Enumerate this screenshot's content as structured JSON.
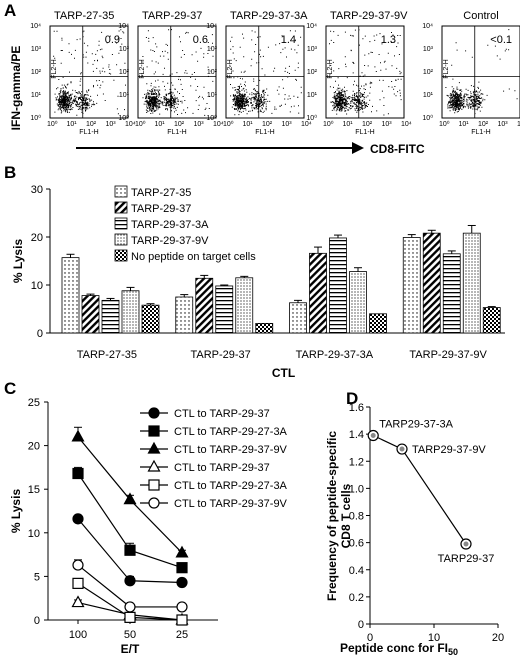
{
  "panels": {
    "A": {
      "letter": "A",
      "y_title": "IFN-gamma/PE",
      "x_title": "CD8-FITC",
      "plots": [
        {
          "title": "TARP-27-35",
          "value": "0.9"
        },
        {
          "title": "TARP-29-37",
          "value": "0.6"
        },
        {
          "title": "TARP-29-37-3A",
          "value": "1.4"
        },
        {
          "title": "TARP-29-37-9V",
          "value": "1.3"
        },
        {
          "title": "Control",
          "value": "<0.1"
        }
      ],
      "axis_x_label": "FL1-H",
      "axis_y_label": "FL2-H",
      "tick_text": [
        "10⁰",
        "10¹",
        "10²",
        "10³",
        "10⁴"
      ]
    },
    "B": {
      "letter": "B"
    },
    "C": {
      "letter": "C"
    },
    "D": {
      "letter": "D"
    }
  },
  "chart_data": [
    {
      "panel": "B",
      "type": "bar",
      "xlabel": "CTL",
      "ylabel": "% Lysis",
      "ylim": [
        0,
        30
      ],
      "yticks": [
        0,
        10,
        20,
        30
      ],
      "categories": [
        "TARP-27-35",
        "TARP-29-37",
        "TARP-29-37-3A",
        "TARP-29-37-9V"
      ],
      "series": [
        {
          "name": "TARP-27-35",
          "pattern": "dots",
          "values": [
            15.7,
            7.5,
            6.3,
            19.9
          ],
          "errors": [
            0.7,
            0.5,
            0.5,
            0.6
          ]
        },
        {
          "name": "TARP-29-37",
          "pattern": "diag",
          "values": [
            7.8,
            11.4,
            16.6,
            20.8
          ],
          "errors": [
            0.3,
            0.6,
            1.3,
            0.6
          ]
        },
        {
          "name": "TARP-29-37-3A",
          "pattern": "hlines",
          "values": [
            6.8,
            9.8,
            19.8,
            16.5
          ],
          "errors": [
            0.4,
            0.2,
            0.6,
            0.6
          ]
        },
        {
          "name": "TARP-29-37-9V",
          "pattern": "dotsdense",
          "values": [
            8.8,
            11.5,
            12.8,
            20.8
          ],
          "errors": [
            0.7,
            0.3,
            0.8,
            1.6
          ]
        },
        {
          "name": "No peptide on target cells",
          "pattern": "checker",
          "values": [
            5.8,
            2.0,
            4.0,
            5.3
          ],
          "errors": [
            0.3,
            0.0,
            0.0,
            0.2
          ]
        }
      ],
      "legend_placement": "top-center"
    },
    {
      "panel": "C",
      "type": "line",
      "xlabel": "E/T",
      "ylabel": "% Lysis",
      "x": [
        "100",
        "50",
        "25"
      ],
      "ylim": [
        0,
        25
      ],
      "yticks": [
        0,
        5,
        10,
        15,
        20,
        25
      ],
      "series": [
        {
          "name": "CTL to TARP-29-37",
          "marker": "circle",
          "filled": true,
          "values": [
            11.6,
            4.5,
            4.3
          ],
          "errors": [
            0.3,
            0.5,
            0.2
          ]
        },
        {
          "name": "CTL to TARP-29-27-3A",
          "marker": "square",
          "filled": true,
          "values": [
            16.8,
            8.0,
            6.0
          ],
          "errors": [
            0.7,
            0.8,
            0.3
          ]
        },
        {
          "name": "CTL to TARP-29-37-9V",
          "marker": "triangle",
          "filled": true,
          "values": [
            21.0,
            13.8,
            7.7
          ],
          "errors": [
            1.1,
            0.5,
            0.3
          ]
        },
        {
          "name": "CTL to TARP-29-37",
          "marker": "triangle",
          "filled": false,
          "values": [
            2.0,
            0.6,
            0.0
          ],
          "errors": [
            0.3,
            0.2,
            0.0
          ]
        },
        {
          "name": "CTL to TARP-29-27-3A",
          "marker": "square",
          "filled": false,
          "values": [
            4.2,
            0.3,
            0.0
          ],
          "errors": [
            0.3,
            0.2,
            0.0
          ]
        },
        {
          "name": "CTL to TARP-29-37-9V",
          "marker": "circle",
          "filled": false,
          "values": [
            6.3,
            1.5,
            1.5
          ],
          "errors": [
            0.6,
            0.2,
            0.2
          ]
        }
      ],
      "legend_placement": "top-right"
    },
    {
      "panel": "D",
      "type": "line",
      "xlabel": "Peptide conc for FI",
      "xlabel_subscript": "50",
      "ylabel_line1": "Frequency of peptide-specific",
      "ylabel_line2": "CD8 T cells",
      "xlim": [
        0,
        20
      ],
      "xticks": [
        0,
        10,
        20
      ],
      "ylim": [
        0,
        1.6
      ],
      "yticks": [
        0,
        0.2,
        0.4,
        0.6,
        0.8,
        1.0,
        1.2,
        1.4,
        1.6
      ],
      "points": [
        {
          "x": 0.5,
          "y": 1.39,
          "label": "TARP29-37-3A"
        },
        {
          "x": 5.0,
          "y": 1.29,
          "label": "TARP29-37-9V"
        },
        {
          "x": 15.0,
          "y": 0.59,
          "label": "TARP29-37"
        }
      ]
    }
  ]
}
